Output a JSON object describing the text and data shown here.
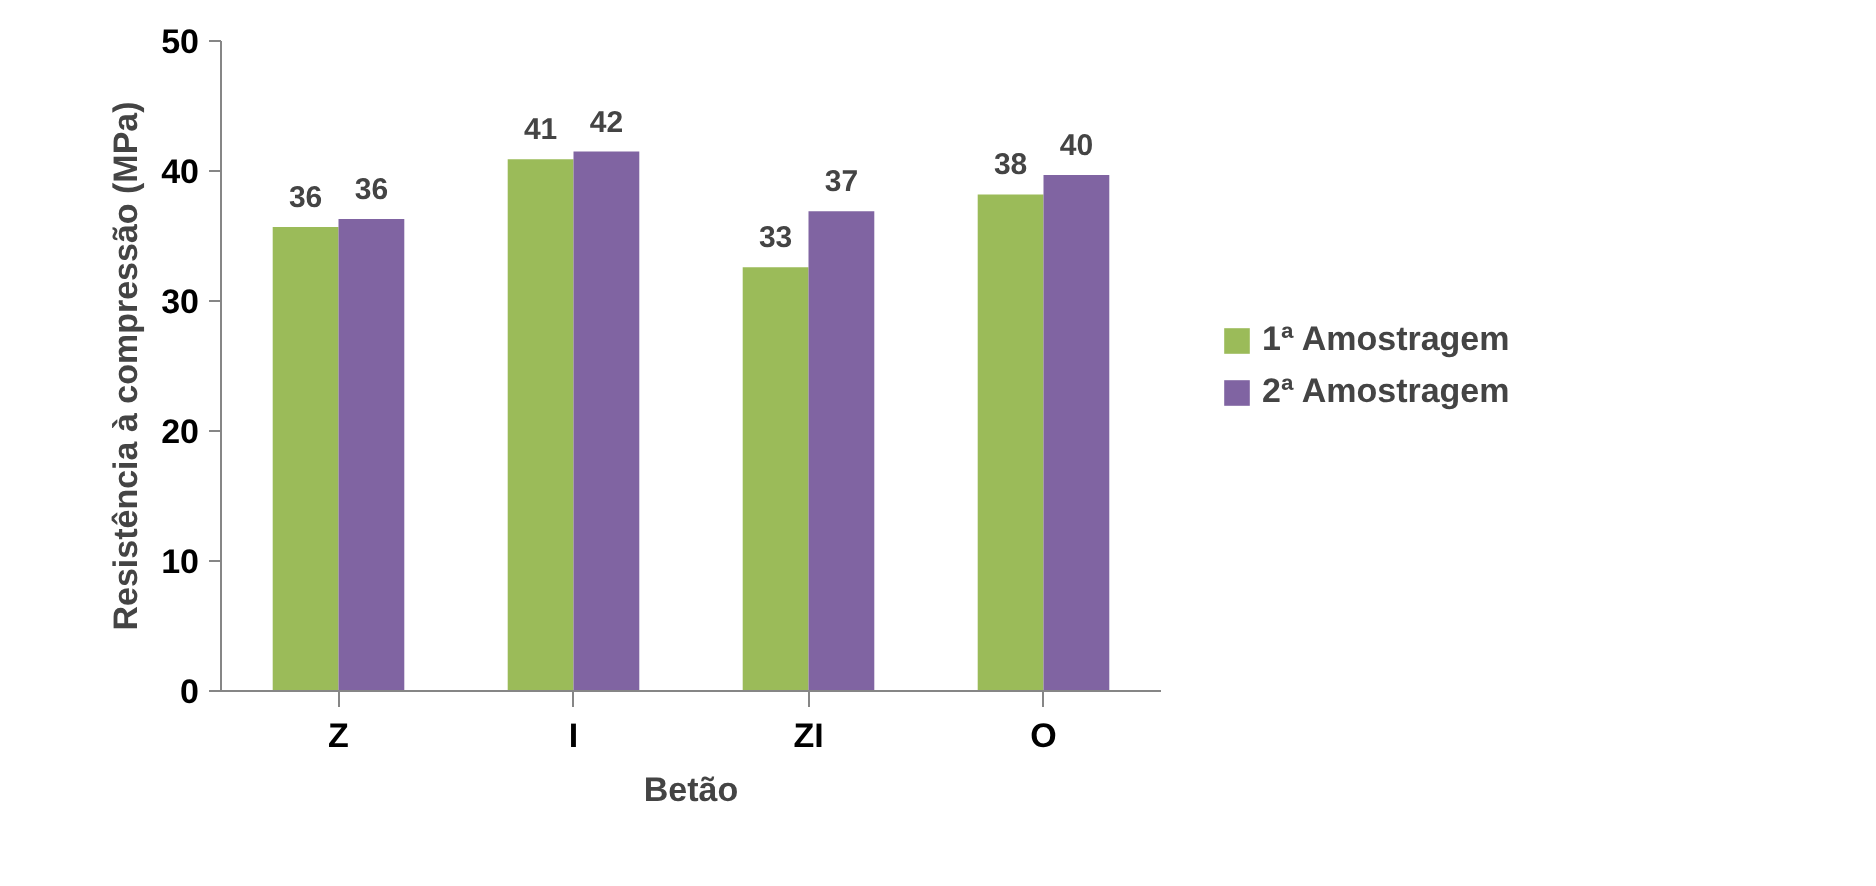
{
  "chart_data": {
    "type": "bar",
    "xlabel": "Betão",
    "ylabel": "Resistência à compressão (MPa)",
    "categories": [
      "Z",
      "I",
      "ZI",
      "O"
    ],
    "series": [
      {
        "name": "1ª Amostragem",
        "color": "#9bbb59",
        "values": [
          35.7,
          40.9,
          32.6,
          38.2
        ],
        "value_labels": [
          "36",
          "41",
          "33",
          "38"
        ]
      },
      {
        "name": "2ª Amostragem",
        "color": "#8064a2",
        "values": [
          36.3,
          41.5,
          36.9,
          39.7
        ],
        "value_labels": [
          "36",
          "42",
          "37",
          "40"
        ]
      }
    ],
    "ylim": [
      0,
      50
    ],
    "yticks": [
      0,
      10,
      20,
      30,
      40,
      50
    ],
    "grid": false,
    "legend": "right"
  }
}
